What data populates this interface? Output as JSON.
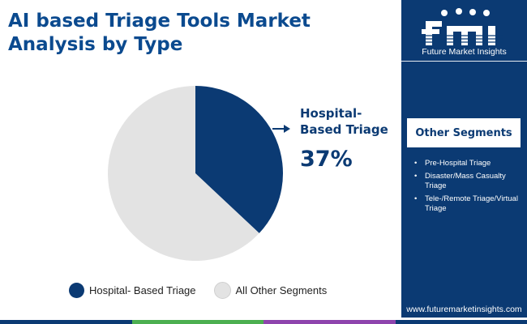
{
  "title": "AI based Triage Tools Market Analysis by Type",
  "colors": {
    "brand_navy": "#0b3a73",
    "title_blue": "#0b4a8f",
    "other_gray": "#e3e3e3",
    "bottom_bar": [
      "#0b3a73",
      "#4caf50",
      "#8e44ad",
      "#0b3a73"
    ]
  },
  "callout": {
    "label_line1": "Hospital-",
    "label_line2": "Based Triage",
    "value": "37%"
  },
  "chart_data": {
    "type": "pie",
    "title": "AI based Triage Tools Market Analysis by Type",
    "slices": [
      {
        "label": "Hospital- Based Triage",
        "value": 37,
        "color": "#0b3a73"
      },
      {
        "label": "All Other Segments",
        "value": 63,
        "color": "#e3e3e3"
      }
    ],
    "legend_placement": "bottom"
  },
  "legend": [
    {
      "label": "Hospital- Based Triage",
      "color": "#0b3a73"
    },
    {
      "label": "All Other Segments",
      "color": "#e3e3e3"
    }
  ],
  "sidebar": {
    "logo_letters": "fmi",
    "logo_text": "Future Market Insights",
    "segments_title": "Other Segments",
    "segments": [
      "Pre-Hospital Triage",
      "Disaster/Mass Casualty Triage",
      "Tele-/Remote Triage/Virtual Triage"
    ],
    "website": "www.futuremarketinsights.com"
  }
}
